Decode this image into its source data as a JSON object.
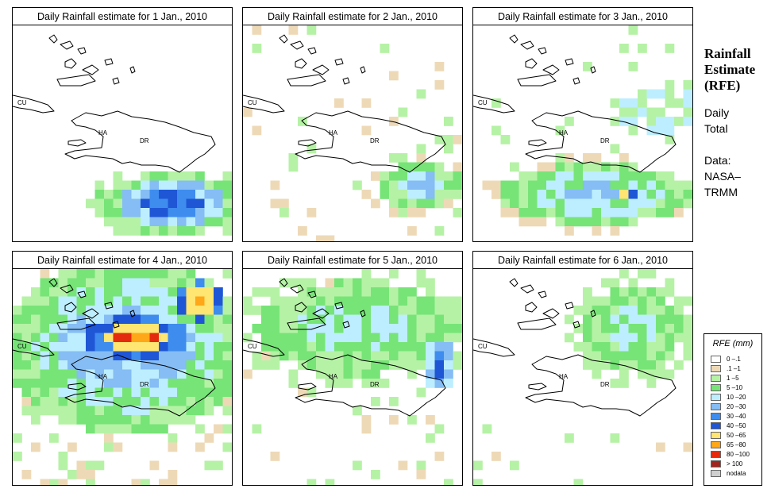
{
  "colors": {
    "r0": "#ffffff",
    "r1": "#eed9b7",
    "r2": "#b5f2a5",
    "r3": "#77e477",
    "r4": "#bdeeff",
    "r5": "#85bdf4",
    "r6": "#3e8cee",
    "r7": "#1f56d6",
    "r8": "#ffe571",
    "r9": "#ffa718",
    "r10": "#e52b0d",
    "r11": "#a1241e",
    "nd": "#cfcfcf"
  },
  "panels": [
    {
      "title": "Daily Rainfall estimate for  1 Jan., 2010",
      "labels": {
        "cu": "CU",
        "ha": "HA",
        "dr": "DR"
      }
    },
    {
      "title": "Daily Rainfall estimate for  2 Jan., 2010",
      "labels": {
        "cu": "CU",
        "ha": "HA",
        "dr": "DR"
      }
    },
    {
      "title": "Daily Rainfall estimate for  3 Jan., 2010",
      "labels": {
        "cu": "CU",
        "ha": "HA",
        "dr": "DR"
      }
    },
    {
      "title": "Daily Rainfall estimate for  4 Jan., 2010",
      "labels": {
        "cu": "CU",
        "ha": "HA",
        "dr": "DR"
      }
    },
    {
      "title": "Daily Rainfall estimate for  5 Jan., 2010",
      "labels": {
        "cu": "CU",
        "ha": "HA",
        "dr": "DR"
      }
    },
    {
      "title": "Daily Rainfall estimate for  6 Jan., 2010",
      "labels": {
        "cu": "CU",
        "ha": "HA",
        "dr": "DR"
      }
    }
  ],
  "side": {
    "title_line1": "Rainfall",
    "title_line2": "Estimate",
    "title_line3": "(RFE)",
    "sub_line1": "Daily",
    "sub_line2": "Total",
    "data_line1": "Data:",
    "data_line2": "NASA–",
    "data_line3": "TRMM"
  },
  "legend": {
    "title": "RFE (mm)",
    "items": [
      {
        "label": "0 –.1",
        "color": "#ffffff"
      },
      {
        "label": ".1 –1",
        "color": "#eed9b7"
      },
      {
        "label": "1 –5",
        "color": "#b5f2a5"
      },
      {
        "label": "5 –10",
        "color": "#77e477"
      },
      {
        "label": "10 –20",
        "color": "#bdeeff"
      },
      {
        "label": "20 –30",
        "color": "#85bdf4"
      },
      {
        "label": "30 –40",
        "color": "#3e8cee"
      },
      {
        "label": "40 –50",
        "color": "#1f56d6"
      },
      {
        "label": "50 –65",
        "color": "#ffe571"
      },
      {
        "label": "65 –80",
        "color": "#ffa718"
      },
      {
        "label": "80 –100",
        "color": "#e52b0d"
      },
      {
        "label": "> 100",
        "color": "#a1241e"
      },
      {
        "label": "nodata",
        "color": "#cfcfcf"
      }
    ]
  }
}
